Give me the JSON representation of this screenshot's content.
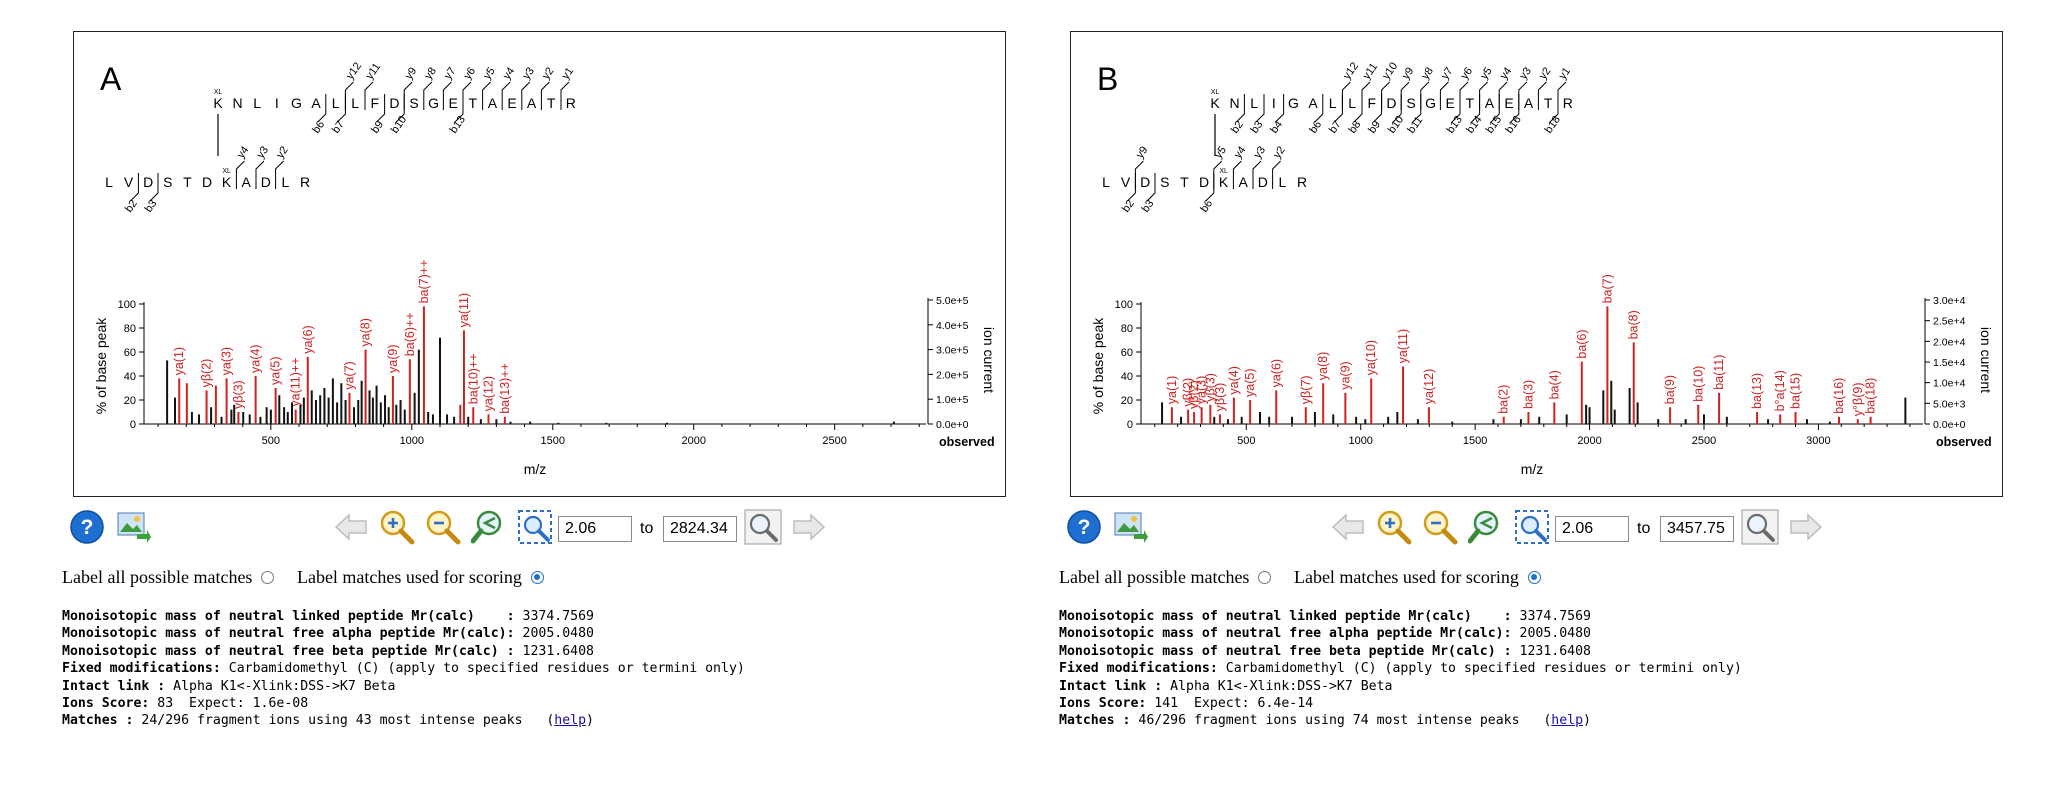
{
  "colors": {
    "matched": "#cc2222",
    "unmatched": "#111111",
    "frame": "#222222",
    "accent": "#1e6fd0"
  },
  "controls": {
    "label_all": "Label all possible matches",
    "label_scoring": "Label matches used for scoring",
    "to": "to",
    "icons": [
      "help-icon",
      "export-image-icon",
      "back-arrow-icon",
      "zoom-in-icon",
      "zoom-out-icon",
      "zoom-reset-icon",
      "zoom-fit-icon",
      "zoom-apply-icon",
      "forward-arrow-icon"
    ]
  },
  "panels": [
    {
      "letter": "A",
      "range_from": "2.06",
      "range_to": "2824.34",
      "selected_label_mode": "scoring",
      "info": {
        "line1_label": "Monoisotopic mass of neutral linked peptide Mr(calc)    :",
        "line1_value": "3374.7569",
        "line2_label": "Monoisotopic mass of neutral free alpha peptide Mr(calc):",
        "line2_value": "2005.0480",
        "line3_label": "Monoisotopic mass of neutral free beta peptide Mr(calc) :",
        "line3_value": "1231.6408",
        "line4_label": "Fixed modifications:",
        "line4_value": "Carbamidomethyl (C) (apply to specified residues or termini only)",
        "line5_label": "Intact link :",
        "line5_value": "Alpha K1<-Xlink:DSS->K7 Beta",
        "line6_label": "Ions Score:",
        "line6_value": "83  Expect: 1.6e-08",
        "line7_label": "Matches :",
        "line7_value": "24/296 fragment ions using 43 most intense peaks   (",
        "help": "help",
        "close": ")"
      },
      "sequence": {
        "alpha": [
          "K",
          "N",
          "L",
          "I",
          "G",
          "A",
          "L",
          "L",
          "F",
          "D",
          "S",
          "G",
          "E",
          "T",
          "A",
          "E",
          "A",
          "T",
          "R"
        ],
        "beta": [
          "L",
          "V",
          "D",
          "S",
          "T",
          "D",
          "K",
          "A",
          "D",
          "L",
          "R"
        ],
        "xl_mark": "XL",
        "alpha_y": [
          "y12",
          "y11",
          "y9",
          "y8",
          "y7",
          "y6",
          "y5",
          "y4",
          "y3",
          "y2",
          "y1"
        ],
        "alpha_b": [
          "b6",
          "b7",
          "b9",
          "b10",
          "b13"
        ],
        "beta_y": [
          "y4",
          "y3",
          "y2"
        ],
        "beta_b": [
          "b2",
          "b3"
        ]
      },
      "chart_data": {
        "type": "bar",
        "title": "",
        "xlabel": "m/z",
        "ylabel": "% of base peak",
        "y2label": "ion current",
        "observed_label": "observed",
        "xlim": [
          50,
          2824
        ],
        "ylim": [
          0,
          100
        ],
        "x_ticks": [
          "500",
          "1000",
          "1500",
          "2000",
          "2500"
        ],
        "y_ticks": [
          "0",
          "20",
          "40",
          "60",
          "80",
          "100"
        ],
        "y2_ticks": [
          "0.0e+0",
          "1.0e+5",
          "2.0e+5",
          "3.0e+5",
          "4.0e+5",
          "5.0e+5"
        ],
        "matched_peaks": [
          {
            "mz": 175,
            "y": 38,
            "label": "ya(1)"
          },
          {
            "mz": 202,
            "y": 34,
            "label": ""
          },
          {
            "mz": 272,
            "y": 28,
            "label": "yβ(2)"
          },
          {
            "mz": 305,
            "y": 32,
            "label": ""
          },
          {
            "mz": 343,
            "y": 38,
            "label": "ya(3)"
          },
          {
            "mz": 385,
            "y": 10,
            "label": "yβ(3)"
          },
          {
            "mz": 446,
            "y": 40,
            "label": "ya(4)"
          },
          {
            "mz": 517,
            "y": 30,
            "label": "ya(5)"
          },
          {
            "mz": 588,
            "y": 12,
            "label": "ya(11)++"
          },
          {
            "mz": 631,
            "y": 56,
            "label": "ya(6)"
          },
          {
            "mz": 779,
            "y": 26,
            "label": "ya(7)"
          },
          {
            "mz": 836,
            "y": 62,
            "label": "ya(8)"
          },
          {
            "mz": 933,
            "y": 40,
            "label": "ya(9)"
          },
          {
            "mz": 993,
            "y": 54,
            "label": "ba(6)++"
          },
          {
            "mz": 1043,
            "y": 98,
            "label": "ba(7)++"
          },
          {
            "mz": 1172,
            "y": 16,
            "label": ""
          },
          {
            "mz": 1185,
            "y": 78,
            "label": "ya(11)"
          },
          {
            "mz": 1218,
            "y": 14,
            "label": "ba(10)++"
          },
          {
            "mz": 1272,
            "y": 8,
            "label": "ya(12)"
          },
          {
            "mz": 1330,
            "y": 6,
            "label": "ba(13)++"
          }
        ],
        "unmatched_peaks": [
          {
            "mz": 132,
            "y": 53
          },
          {
            "mz": 160,
            "y": 22
          },
          {
            "mz": 220,
            "y": 10
          },
          {
            "mz": 245,
            "y": 8
          },
          {
            "mz": 288,
            "y": 14
          },
          {
            "mz": 325,
            "y": 6
          },
          {
            "mz": 360,
            "y": 12
          },
          {
            "mz": 370,
            "y": 16
          },
          {
            "mz": 402,
            "y": 10
          },
          {
            "mz": 425,
            "y": 8
          },
          {
            "mz": 463,
            "y": 6
          },
          {
            "mz": 485,
            "y": 14
          },
          {
            "mz": 500,
            "y": 12
          },
          {
            "mz": 530,
            "y": 24
          },
          {
            "mz": 547,
            "y": 14
          },
          {
            "mz": 560,
            "y": 10
          },
          {
            "mz": 575,
            "y": 18
          },
          {
            "mz": 605,
            "y": 16
          },
          {
            "mz": 617,
            "y": 22
          },
          {
            "mz": 645,
            "y": 28
          },
          {
            "mz": 660,
            "y": 20
          },
          {
            "mz": 675,
            "y": 24
          },
          {
            "mz": 690,
            "y": 30
          },
          {
            "mz": 705,
            "y": 22
          },
          {
            "mz": 720,
            "y": 38
          },
          {
            "mz": 735,
            "y": 18
          },
          {
            "mz": 750,
            "y": 34
          },
          {
            "mz": 765,
            "y": 20
          },
          {
            "mz": 795,
            "y": 14
          },
          {
            "mz": 810,
            "y": 20
          },
          {
            "mz": 822,
            "y": 36
          },
          {
            "mz": 850,
            "y": 28
          },
          {
            "mz": 862,
            "y": 22
          },
          {
            "mz": 875,
            "y": 32
          },
          {
            "mz": 890,
            "y": 18
          },
          {
            "mz": 905,
            "y": 24
          },
          {
            "mz": 918,
            "y": 14
          },
          {
            "mz": 945,
            "y": 16
          },
          {
            "mz": 960,
            "y": 20
          },
          {
            "mz": 975,
            "y": 12
          },
          {
            "mz": 1010,
            "y": 26
          },
          {
            "mz": 1025,
            "y": 62
          },
          {
            "mz": 1058,
            "y": 10
          },
          {
            "mz": 1075,
            "y": 8
          },
          {
            "mz": 1100,
            "y": 72
          },
          {
            "mz": 1125,
            "y": 8
          },
          {
            "mz": 1150,
            "y": 6
          },
          {
            "mz": 1200,
            "y": 6
          },
          {
            "mz": 1245,
            "y": 4
          },
          {
            "mz": 1300,
            "y": 4
          },
          {
            "mz": 1350,
            "y": 2
          },
          {
            "mz": 1420,
            "y": 2
          },
          {
            "mz": 1520,
            "y": 1
          },
          {
            "mz": 1690,
            "y": 1
          },
          {
            "mz": 1905,
            "y": 1
          },
          {
            "mz": 2710,
            "y": 2
          }
        ]
      }
    },
    {
      "letter": "B",
      "range_from": "2.06",
      "range_to": "3457.75",
      "selected_label_mode": "scoring",
      "info": {
        "line1_label": "Monoisotopic mass of neutral linked peptide Mr(calc)    :",
        "line1_value": "3374.7569",
        "line2_label": "Monoisotopic mass of neutral free alpha peptide Mr(calc):",
        "line2_value": "2005.0480",
        "line3_label": "Monoisotopic mass of neutral free beta peptide Mr(calc) :",
        "line3_value": "1231.6408",
        "line4_label": "Fixed modifications:",
        "line4_value": "Carbamidomethyl (C) (apply to specified residues or termini only)",
        "line5_label": "Intact link :",
        "line5_value": "Alpha K1<-Xlink:DSS->K7 Beta",
        "line6_label": "Ions Score:",
        "line6_value": "141  Expect: 6.4e-14",
        "line7_label": "Matches :",
        "line7_value": "46/296 fragment ions using 74 most intense peaks   (",
        "help": "help",
        "close": ")"
      },
      "sequence": {
        "alpha": [
          "K",
          "N",
          "L",
          "I",
          "G",
          "A",
          "L",
          "L",
          "F",
          "D",
          "S",
          "G",
          "E",
          "T",
          "A",
          "E",
          "A",
          "T",
          "R"
        ],
        "beta": [
          "L",
          "V",
          "D",
          "S",
          "T",
          "D",
          "K",
          "A",
          "D",
          "L",
          "R"
        ],
        "xl_mark": "XL",
        "alpha_y": [
          "y12",
          "y11",
          "y10",
          "y9",
          "y8",
          "y7",
          "y6",
          "y5",
          "y4",
          "y3",
          "y2",
          "y1"
        ],
        "alpha_b": [
          "b2",
          "b3",
          "b4",
          "b6",
          "b7",
          "b8",
          "b9",
          "b10",
          "b11",
          "b13",
          "b14",
          "b15",
          "b16",
          "b18"
        ],
        "beta_y": [
          "y9",
          "y5",
          "y4",
          "y3",
          "y2"
        ],
        "beta_b": [
          "b2",
          "b3",
          "b6"
        ]
      },
      "chart_data": {
        "type": "bar",
        "title": "",
        "xlabel": "m/z",
        "ylabel": "% of base peak",
        "y2label": "ion current",
        "observed_label": "observed",
        "xlim": [
          40,
          3457
        ],
        "ylim": [
          0,
          100
        ],
        "x_ticks": [
          "500",
          "1000",
          "1500",
          "2000",
          "2500",
          "3000"
        ],
        "y_ticks": [
          "0",
          "20",
          "40",
          "60",
          "80",
          "100"
        ],
        "y2_ticks": [
          "0.0e+0",
          "5.0e+3",
          "1.0e+4",
          "1.5e+4",
          "2.0e+4",
          "2.5e+4",
          "3.0e+4"
        ],
        "matched_peaks": [
          {
            "mz": 175,
            "y": 14,
            "label": "ya(1)"
          },
          {
            "mz": 246,
            "y": 12,
            "label": "yβ(2)"
          },
          {
            "mz": 272,
            "y": 10,
            "label": "yβ(2)"
          },
          {
            "mz": 305,
            "y": 14,
            "label": "ya(3)"
          },
          {
            "mz": 343,
            "y": 16,
            "label": "yβ(3)"
          },
          {
            "mz": 385,
            "y": 8,
            "label": "yβ(3)"
          },
          {
            "mz": 446,
            "y": 22,
            "label": "ya(4)"
          },
          {
            "mz": 517,
            "y": 20,
            "label": "ya(5)"
          },
          {
            "mz": 631,
            "y": 28,
            "label": "ya(6)"
          },
          {
            "mz": 760,
            "y": 14,
            "label": "yβ(7)"
          },
          {
            "mz": 836,
            "y": 34,
            "label": "ya(8)"
          },
          {
            "mz": 933,
            "y": 26,
            "label": "ya(9)"
          },
          {
            "mz": 1046,
            "y": 38,
            "label": "ya(10)"
          },
          {
            "mz": 1185,
            "y": 48,
            "label": "ya(11)"
          },
          {
            "mz": 1298,
            "y": 14,
            "label": "ya(12)"
          },
          {
            "mz": 1625,
            "y": 6,
            "label": "ba(2)"
          },
          {
            "mz": 1733,
            "y": 10,
            "label": "ba(3)"
          },
          {
            "mz": 1846,
            "y": 18,
            "label": "ba(4)"
          },
          {
            "mz": 1966,
            "y": 52,
            "label": "ba(6)"
          },
          {
            "mz": 2078,
            "y": 98,
            "label": "ba(7)"
          },
          {
            "mz": 2193,
            "y": 68,
            "label": "ba(8)"
          },
          {
            "mz": 2352,
            "y": 14,
            "label": "ba(9)"
          },
          {
            "mz": 2475,
            "y": 16,
            "label": "ba(10)"
          },
          {
            "mz": 2566,
            "y": 26,
            "label": "ba(11)"
          },
          {
            "mz": 2732,
            "y": 10,
            "label": "ba(13)"
          },
          {
            "mz": 2833,
            "y": 8,
            "label": "b°a(14)"
          },
          {
            "mz": 2900,
            "y": 10,
            "label": "ba(15)"
          },
          {
            "mz": 3090,
            "y": 6,
            "label": "ba(16)"
          },
          {
            "mz": 3172,
            "y": 4,
            "label": "y°β(9)"
          },
          {
            "mz": 3228,
            "y": 6,
            "label": "ba(18)"
          }
        ],
        "unmatched_peaks": [
          {
            "mz": 132,
            "y": 18
          },
          {
            "mz": 215,
            "y": 6
          },
          {
            "mz": 360,
            "y": 6
          },
          {
            "mz": 420,
            "y": 4
          },
          {
            "mz": 480,
            "y": 6
          },
          {
            "mz": 560,
            "y": 10
          },
          {
            "mz": 600,
            "y": 6
          },
          {
            "mz": 700,
            "y": 6
          },
          {
            "mz": 800,
            "y": 10
          },
          {
            "mz": 880,
            "y": 8
          },
          {
            "mz": 980,
            "y": 6
          },
          {
            "mz": 1020,
            "y": 4
          },
          {
            "mz": 1120,
            "y": 6
          },
          {
            "mz": 1160,
            "y": 10
          },
          {
            "mz": 1250,
            "y": 4
          },
          {
            "mz": 1400,
            "y": 2
          },
          {
            "mz": 1580,
            "y": 4
          },
          {
            "mz": 1700,
            "y": 4
          },
          {
            "mz": 1780,
            "y": 6
          },
          {
            "mz": 1900,
            "y": 8
          },
          {
            "mz": 1985,
            "y": 16
          },
          {
            "mz": 2000,
            "y": 14
          },
          {
            "mz": 2060,
            "y": 28
          },
          {
            "mz": 2095,
            "y": 36
          },
          {
            "mz": 2110,
            "y": 12
          },
          {
            "mz": 2175,
            "y": 30
          },
          {
            "mz": 2210,
            "y": 18
          },
          {
            "mz": 2300,
            "y": 4
          },
          {
            "mz": 2420,
            "y": 4
          },
          {
            "mz": 2500,
            "y": 8
          },
          {
            "mz": 2600,
            "y": 6
          },
          {
            "mz": 2780,
            "y": 4
          },
          {
            "mz": 2950,
            "y": 4
          },
          {
            "mz": 3050,
            "y": 2
          },
          {
            "mz": 3380,
            "y": 22
          }
        ]
      }
    }
  ]
}
